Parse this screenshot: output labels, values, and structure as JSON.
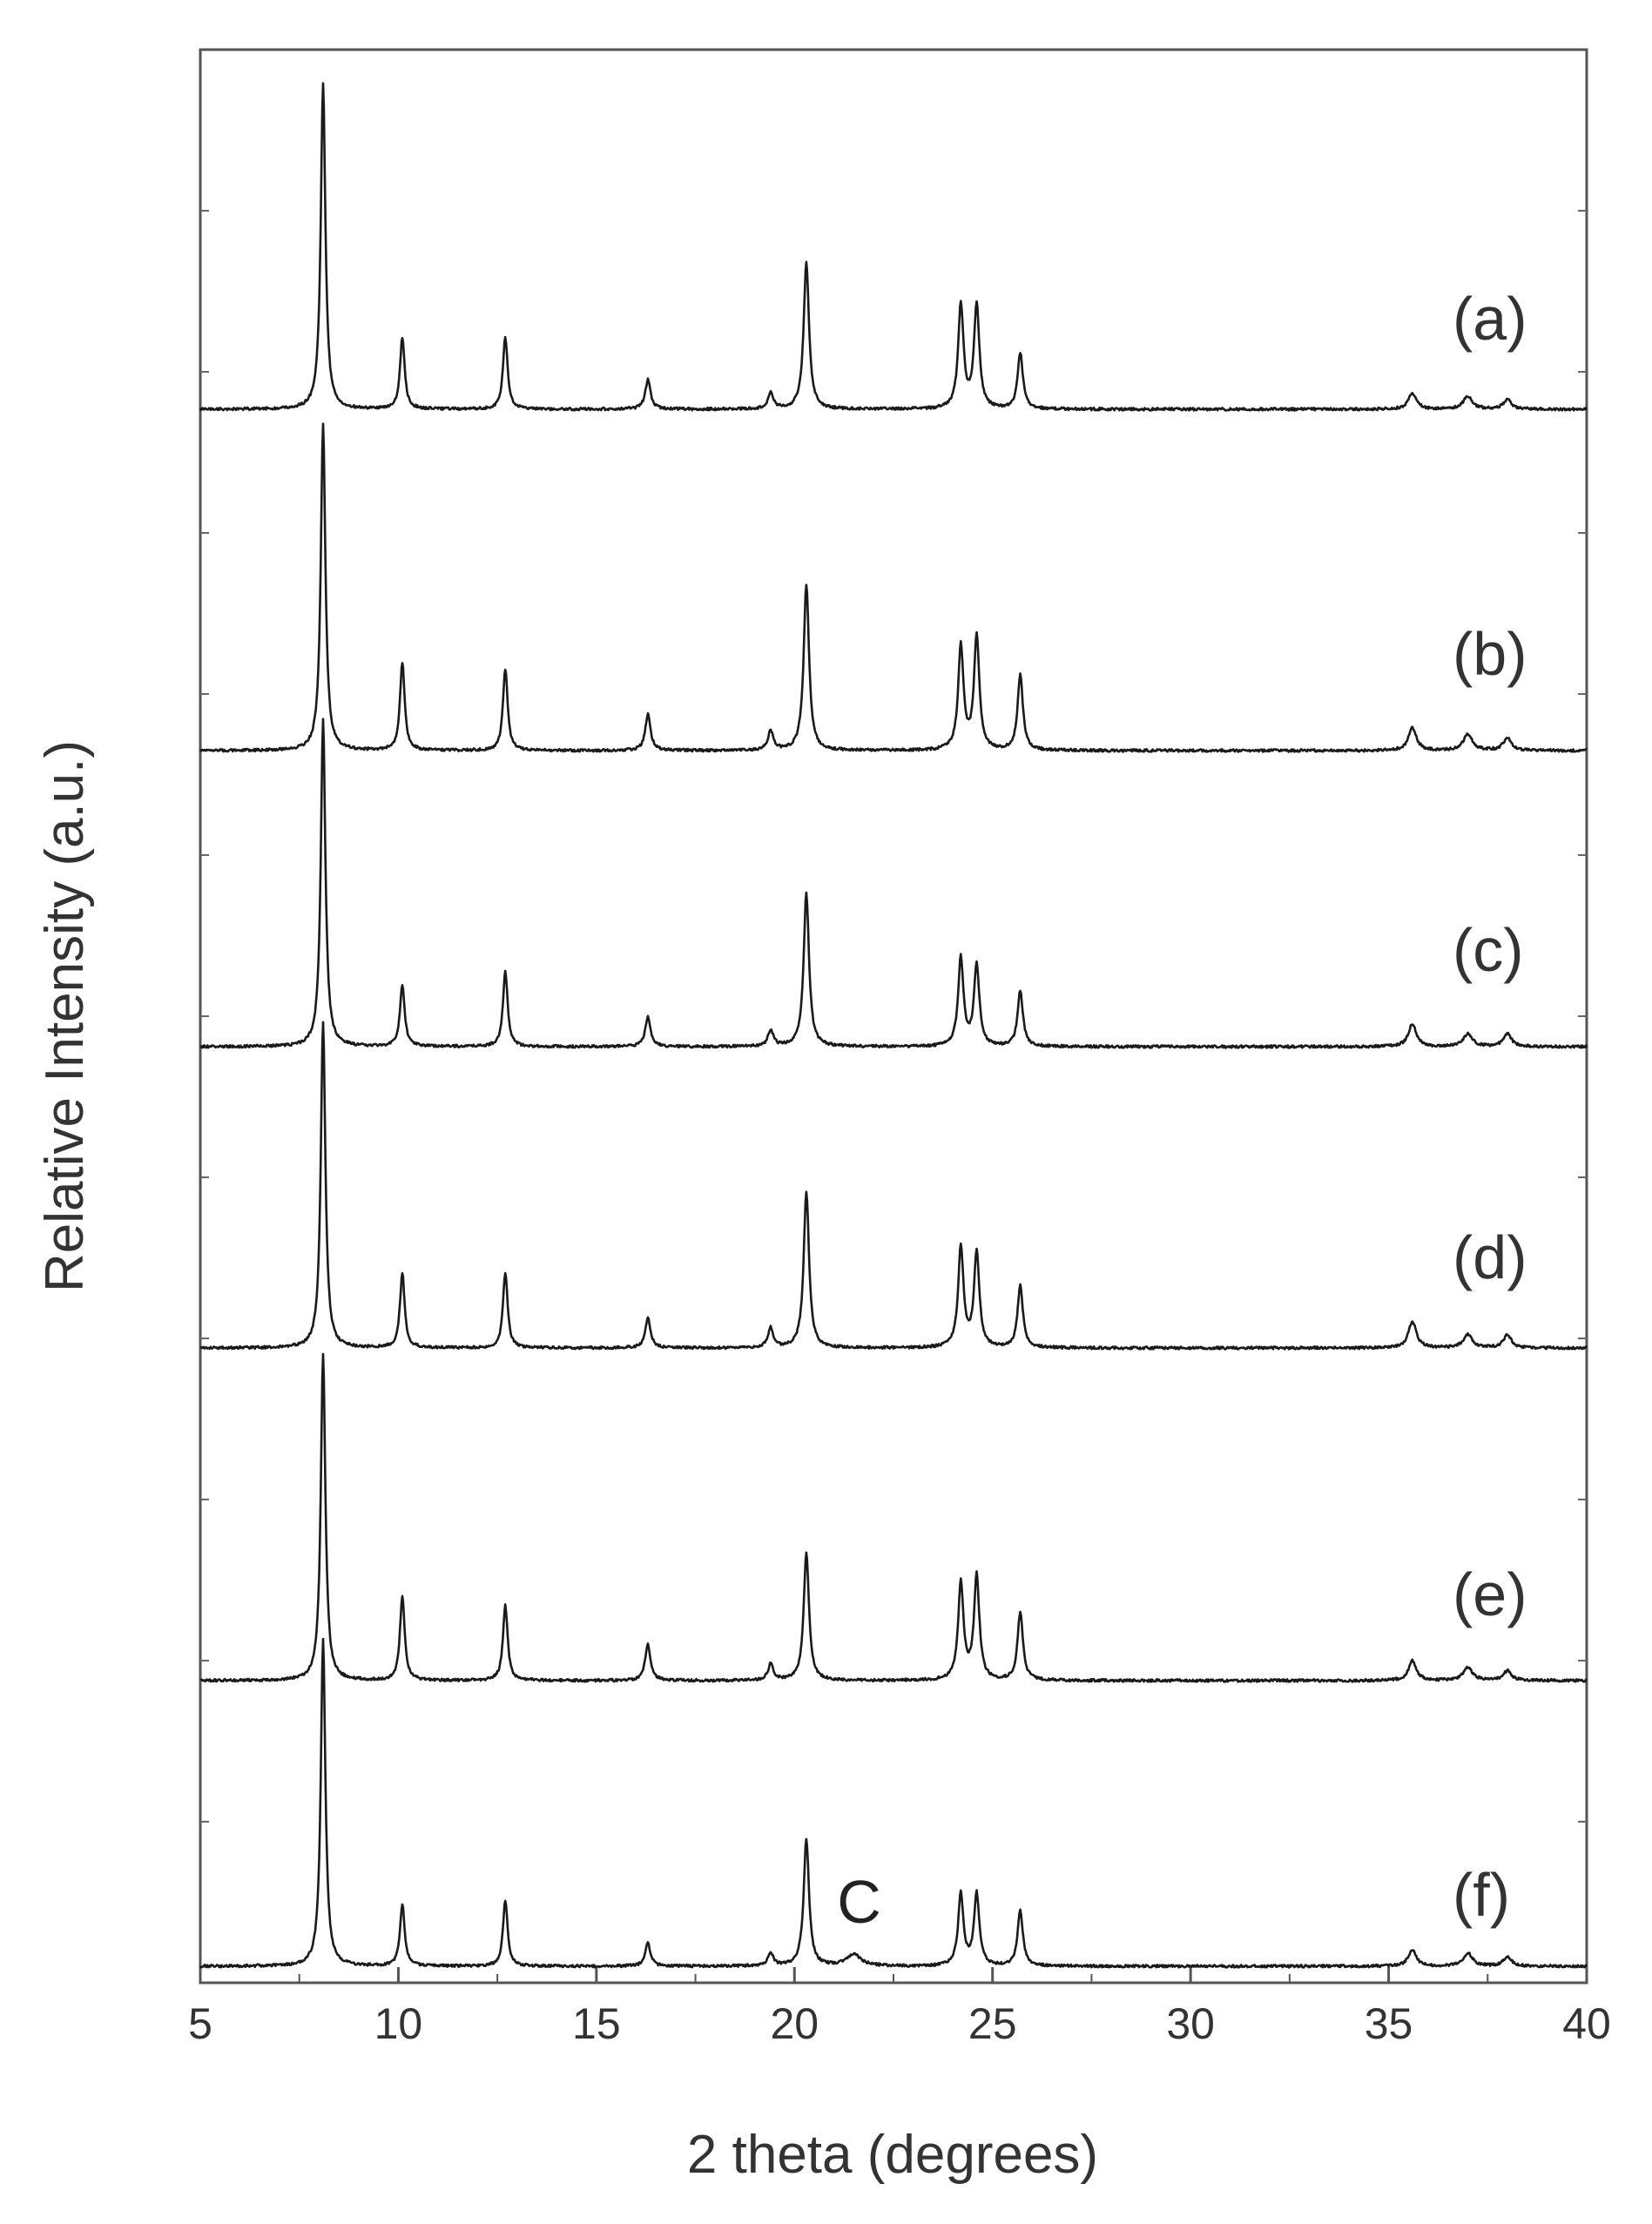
{
  "chart_data": {
    "type": "line",
    "title": "",
    "xlabel": "2 theta (degrees)",
    "ylabel": "Relative Intensity (a.u.)",
    "xlim": [
      5,
      40
    ],
    "x_ticks": [
      5,
      10,
      15,
      20,
      25,
      30,
      35,
      40
    ],
    "y_ticks_labeled": false,
    "grid": false,
    "stacked_offset": true,
    "peak_positions": [
      8.1,
      10.1,
      12.7,
      16.3,
      19.4,
      20.3,
      24.2,
      24.6,
      25.7,
      35.6,
      37.0,
      38.0
    ],
    "series": [
      {
        "name": "(a)",
        "relative_intensity": [
          100,
          22,
          22,
          9,
          5,
          45,
          32,
          32,
          17,
          5,
          4,
          3
        ]
      },
      {
        "name": "(b)",
        "relative_intensity": [
          100,
          27,
          25,
          11,
          6,
          51,
          32,
          35,
          23,
          7,
          5,
          4
        ]
      },
      {
        "name": "(c)",
        "relative_intensity": [
          100,
          19,
          23,
          9,
          5,
          47,
          27,
          25,
          17,
          7,
          4,
          4
        ]
      },
      {
        "name": "(d)",
        "relative_intensity": [
          100,
          23,
          23,
          9,
          6,
          48,
          31,
          29,
          19,
          8,
          4,
          4
        ]
      },
      {
        "name": "(e)",
        "relative_intensity": [
          100,
          26,
          23,
          11,
          5,
          39,
          30,
          32,
          21,
          6,
          4,
          3
        ]
      },
      {
        "name": "(f)",
        "relative_intensity": [
          100,
          19,
          20,
          7,
          4,
          39,
          22,
          22,
          17,
          5,
          4,
          3
        ]
      }
    ],
    "annotations": [
      {
        "text": "C",
        "x": 21.5,
        "series": "(f)"
      }
    ]
  }
}
